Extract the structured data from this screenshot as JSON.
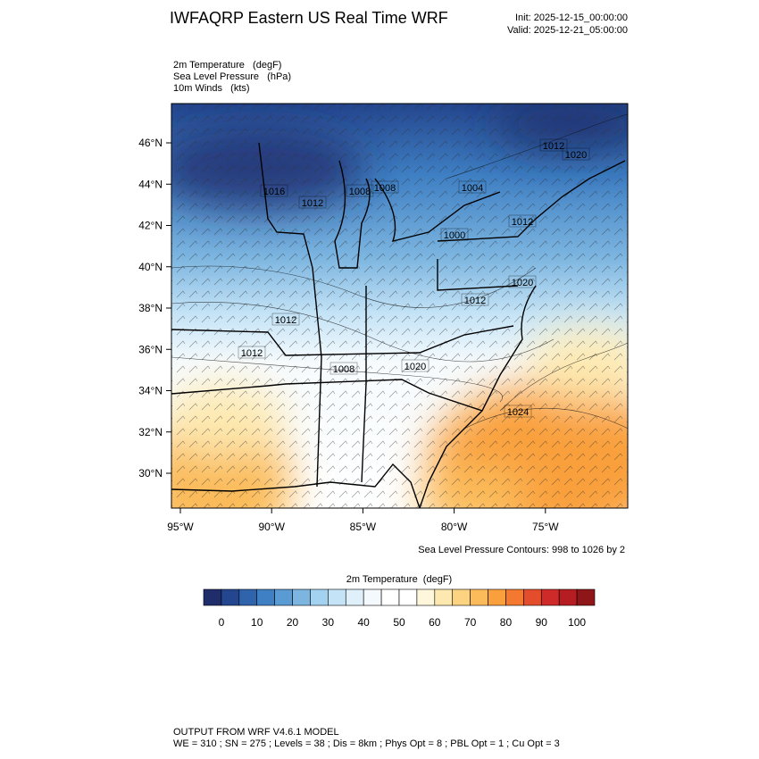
{
  "header": {
    "title": "IWFAQRP Eastern US Real Time WRF",
    "init": "Init: 2025-12-15_00:00:00",
    "valid": "Valid: 2025-12-21_05:00:00"
  },
  "fields": [
    "2m Temperature   (degF)",
    "Sea Level Pressure   (hPa)",
    "10m Winds   (kts)"
  ],
  "map": {
    "lat_labels": [
      "46°N",
      "44°N",
      "42°N",
      "40°N",
      "38°N",
      "36°N",
      "34°N",
      "32°N",
      "30°N"
    ],
    "lon_labels": [
      "95°W",
      "90°W",
      "85°W",
      "80°W",
      "75°W"
    ],
    "contour_labels": [
      "1016",
      "1012",
      "1008",
      "1004",
      "1000",
      "1012",
      "1012",
      "1020",
      "1008",
      "1012",
      "1012",
      "1008",
      "1020",
      "1024",
      "1012",
      "1020"
    ],
    "contour_note": "Sea Level Pressure Contours: 998 to 1026 by 2"
  },
  "colorbar": {
    "title": "2m Temperature  (degF)",
    "colors": [
      "#1f2d6b",
      "#24468e",
      "#2f63ac",
      "#3f80c4",
      "#5a9bd4",
      "#7cb5e0",
      "#a3d1f0",
      "#c4e3f6",
      "#dff0fb",
      "#f3f9fd",
      "#ffffff",
      "#ffffff",
      "#fff7dc",
      "#fde9b0",
      "#fcd380",
      "#fbbb5a",
      "#f9a03c",
      "#f2792f",
      "#e34d2c",
      "#cf2a2a",
      "#b51d22",
      "#8e1518"
    ],
    "ticks": [
      0,
      10,
      20,
      30,
      40,
      50,
      60,
      70,
      80,
      90,
      100
    ]
  },
  "footer": {
    "line1": "OUTPUT FROM WRF V4.6.1 MODEL",
    "line2": "WE = 310 ; SN = 275 ; Levels = 38 ; Dis = 8km ; Phys Opt = 8 ; PBL Opt = 1 ; Cu Opt = 3"
  }
}
